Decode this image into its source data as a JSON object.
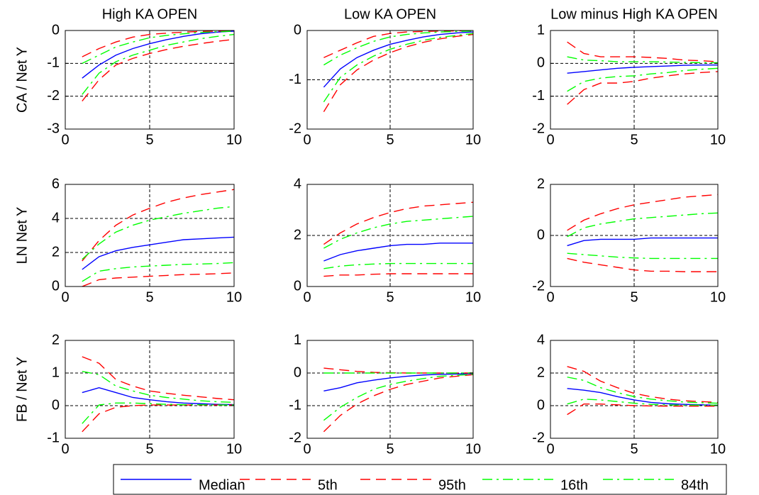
{
  "chart_data": [
    {
      "type": "line",
      "title": "High KA OPEN",
      "ylabel": "CA / Net Y",
      "x": [
        1,
        2,
        3,
        4,
        5,
        6,
        7,
        8,
        9,
        10
      ],
      "xlim": [
        0,
        10
      ],
      "xticks": [
        0,
        5,
        10
      ],
      "ylim": [
        -3,
        0
      ],
      "yticks": [
        -3,
        -2,
        -1,
        0
      ],
      "grid": true,
      "series": [
        {
          "name": "Median",
          "color": "#0000ff",
          "linestyle": "solid",
          "values": [
            -1.45,
            -1.05,
            -0.75,
            -0.55,
            -0.4,
            -0.28,
            -0.18,
            -0.1,
            -0.05,
            -0.02
          ]
        },
        {
          "name": "5th",
          "color": "#ff0000",
          "linestyle": "dashed",
          "values": [
            -2.15,
            -1.5,
            -1.05,
            -0.85,
            -0.7,
            -0.58,
            -0.48,
            -0.4,
            -0.33,
            -0.27
          ]
        },
        {
          "name": "95th",
          "color": "#ff0000",
          "linestyle": "dashed",
          "values": [
            -0.8,
            -0.55,
            -0.35,
            -0.2,
            -0.12,
            -0.08,
            -0.05,
            -0.03,
            -0.02,
            -0.01
          ]
        },
        {
          "name": "16th",
          "color": "#00ff00",
          "linestyle": "dashdot",
          "values": [
            -1.95,
            -1.3,
            -0.95,
            -0.75,
            -0.6,
            -0.45,
            -0.35,
            -0.25,
            -0.18,
            -0.12
          ]
        },
        {
          "name": "84th",
          "color": "#00ff00",
          "linestyle": "dashdot",
          "values": [
            -1.0,
            -0.75,
            -0.5,
            -0.35,
            -0.22,
            -0.15,
            -0.1,
            -0.06,
            -0.04,
            -0.02
          ]
        }
      ]
    },
    {
      "type": "line",
      "title": "Low KA OPEN",
      "x": [
        1,
        2,
        3,
        4,
        5,
        6,
        7,
        8,
        9,
        10
      ],
      "xlim": [
        0,
        10
      ],
      "xticks": [
        0,
        5,
        10
      ],
      "ylim": [
        -2,
        0
      ],
      "yticks": [
        -2,
        -1,
        0
      ],
      "grid": true,
      "series": [
        {
          "name": "Median",
          "color": "#0000ff",
          "linestyle": "solid",
          "values": [
            -1.15,
            -0.78,
            -0.55,
            -0.4,
            -0.28,
            -0.2,
            -0.13,
            -0.08,
            -0.05,
            -0.03
          ]
        },
        {
          "name": "5th",
          "color": "#ff0000",
          "linestyle": "dashed",
          "values": [
            -1.65,
            -1.1,
            -0.8,
            -0.6,
            -0.45,
            -0.33,
            -0.24,
            -0.17,
            -0.12,
            -0.08
          ]
        },
        {
          "name": "95th",
          "color": "#ff0000",
          "linestyle": "dashed",
          "values": [
            -0.55,
            -0.4,
            -0.25,
            -0.12,
            -0.06,
            -0.03,
            -0.02,
            -0.01,
            -0.01,
            0
          ]
        },
        {
          "name": "16th",
          "color": "#00ff00",
          "linestyle": "dashdot",
          "values": [
            -1.45,
            -0.95,
            -0.7,
            -0.52,
            -0.38,
            -0.28,
            -0.2,
            -0.14,
            -0.1,
            -0.06
          ]
        },
        {
          "name": "84th",
          "color": "#00ff00",
          "linestyle": "dashdot",
          "values": [
            -0.7,
            -0.5,
            -0.35,
            -0.22,
            -0.13,
            -0.08,
            -0.05,
            -0.03,
            -0.02,
            -0.01
          ]
        }
      ]
    },
    {
      "type": "line",
      "title": "Low minus High KA OPEN",
      "x": [
        1,
        2,
        3,
        4,
        5,
        6,
        7,
        8,
        9,
        10
      ],
      "xlim": [
        0,
        10
      ],
      "xticks": [
        0,
        5,
        10
      ],
      "ylim": [
        -2,
        1
      ],
      "yticks": [
        -2,
        -1,
        0,
        1
      ],
      "grid": true,
      "series": [
        {
          "name": "Median",
          "color": "#0000ff",
          "linestyle": "solid",
          "values": [
            -0.3,
            -0.25,
            -0.2,
            -0.15,
            -0.12,
            -0.1,
            -0.08,
            -0.06,
            -0.05,
            -0.05
          ]
        },
        {
          "name": "5th",
          "color": "#ff0000",
          "linestyle": "dashed",
          "values": [
            -1.25,
            -0.8,
            -0.6,
            -0.6,
            -0.55,
            -0.45,
            -0.38,
            -0.32,
            -0.28,
            -0.25
          ]
        },
        {
          "name": "95th",
          "color": "#ff0000",
          "linestyle": "dashed",
          "values": [
            0.65,
            0.3,
            0.2,
            0.2,
            0.2,
            0.18,
            0.15,
            0.1,
            0.08,
            0.05
          ]
        },
        {
          "name": "16th",
          "color": "#00ff00",
          "linestyle": "dashdot",
          "values": [
            -0.85,
            -0.55,
            -0.45,
            -0.4,
            -0.38,
            -0.32,
            -0.28,
            -0.22,
            -0.18,
            -0.15
          ]
        },
        {
          "name": "84th",
          "color": "#00ff00",
          "linestyle": "dashdot",
          "values": [
            0.2,
            0.1,
            0.08,
            0.05,
            0.05,
            0.05,
            0.04,
            0.03,
            0.02,
            0.02
          ]
        }
      ]
    },
    {
      "type": "line",
      "ylabel": "LN Net Y",
      "x": [
        1,
        2,
        3,
        4,
        5,
        6,
        7,
        8,
        9,
        10
      ],
      "xlim": [
        0,
        10
      ],
      "xticks": [
        0,
        5,
        10
      ],
      "ylim": [
        0,
        6
      ],
      "yticks": [
        0,
        2,
        4,
        6
      ],
      "grid": true,
      "series": [
        {
          "name": "Median",
          "color": "#0000ff",
          "linestyle": "solid",
          "values": [
            1.0,
            1.75,
            2.1,
            2.3,
            2.45,
            2.6,
            2.75,
            2.8,
            2.85,
            2.9
          ]
        },
        {
          "name": "5th",
          "color": "#ff0000",
          "linestyle": "dashed",
          "values": [
            0,
            0.4,
            0.5,
            0.55,
            0.6,
            0.65,
            0.7,
            0.72,
            0.75,
            0.8
          ]
        },
        {
          "name": "95th",
          "color": "#ff0000",
          "linestyle": "dashed",
          "values": [
            1.5,
            2.7,
            3.6,
            4.2,
            4.6,
            4.95,
            5.2,
            5.4,
            5.55,
            5.7
          ]
        },
        {
          "name": "16th",
          "color": "#00ff00",
          "linestyle": "dashdot",
          "values": [
            0.3,
            0.9,
            1.05,
            1.15,
            1.2,
            1.25,
            1.3,
            1.32,
            1.35,
            1.4
          ]
        },
        {
          "name": "84th",
          "color": "#00ff00",
          "linestyle": "dashdot",
          "values": [
            1.6,
            2.5,
            3.2,
            3.6,
            3.9,
            4.1,
            4.3,
            4.45,
            4.6,
            4.7
          ]
        }
      ]
    },
    {
      "type": "line",
      "x": [
        1,
        2,
        3,
        4,
        5,
        6,
        7,
        8,
        9,
        10
      ],
      "xlim": [
        0,
        10
      ],
      "xticks": [
        0,
        5,
        10
      ],
      "ylim": [
        0,
        4
      ],
      "yticks": [
        0,
        2,
        4
      ],
      "grid": true,
      "series": [
        {
          "name": "Median",
          "color": "#0000ff",
          "linestyle": "solid",
          "values": [
            1.0,
            1.25,
            1.4,
            1.5,
            1.6,
            1.65,
            1.65,
            1.7,
            1.7,
            1.7
          ]
        },
        {
          "name": "5th",
          "color": "#ff0000",
          "linestyle": "dashed",
          "values": [
            0.4,
            0.45,
            0.45,
            0.48,
            0.5,
            0.5,
            0.5,
            0.5,
            0.5,
            0.5
          ]
        },
        {
          "name": "95th",
          "color": "#ff0000",
          "linestyle": "dashed",
          "values": [
            1.65,
            2.1,
            2.45,
            2.7,
            2.9,
            3.05,
            3.15,
            3.2,
            3.25,
            3.3
          ]
        },
        {
          "name": "16th",
          "color": "#00ff00",
          "linestyle": "dashdot",
          "values": [
            0.7,
            0.8,
            0.85,
            0.88,
            0.9,
            0.9,
            0.9,
            0.9,
            0.9,
            0.9
          ]
        },
        {
          "name": "84th",
          "color": "#00ff00",
          "linestyle": "dashdot",
          "values": [
            1.5,
            1.85,
            2.1,
            2.3,
            2.45,
            2.55,
            2.6,
            2.65,
            2.7,
            2.75
          ]
        }
      ]
    },
    {
      "type": "line",
      "x": [
        1,
        2,
        3,
        4,
        5,
        6,
        7,
        8,
        9,
        10
      ],
      "xlim": [
        0,
        10
      ],
      "xticks": [
        0,
        5,
        10
      ],
      "ylim": [
        -2,
        2
      ],
      "yticks": [
        -2,
        0,
        2
      ],
      "grid": true,
      "series": [
        {
          "name": "Median",
          "color": "#0000ff",
          "linestyle": "solid",
          "values": [
            -0.4,
            -0.2,
            -0.15,
            -0.15,
            -0.15,
            -0.1,
            -0.1,
            -0.1,
            -0.1,
            -0.1
          ]
        },
        {
          "name": "5th",
          "color": "#ff0000",
          "linestyle": "dashed",
          "values": [
            -0.9,
            -1.05,
            -1.15,
            -1.25,
            -1.35,
            -1.4,
            -1.4,
            -1.42,
            -1.42,
            -1.42
          ]
        },
        {
          "name": "95th",
          "color": "#ff0000",
          "linestyle": "dashed",
          "values": [
            0.2,
            0.6,
            0.85,
            1.05,
            1.2,
            1.3,
            1.4,
            1.5,
            1.55,
            1.6
          ]
        },
        {
          "name": "16th",
          "color": "#00ff00",
          "linestyle": "dashdot",
          "values": [
            -0.7,
            -0.75,
            -0.8,
            -0.85,
            -0.88,
            -0.9,
            -0.9,
            -0.9,
            -0.9,
            -0.9
          ]
        },
        {
          "name": "84th",
          "color": "#00ff00",
          "linestyle": "dashdot",
          "values": [
            -0.05,
            0.3,
            0.45,
            0.55,
            0.65,
            0.7,
            0.75,
            0.8,
            0.85,
            0.88
          ]
        }
      ]
    },
    {
      "type": "line",
      "ylabel": "FB / Net Y",
      "x": [
        1,
        2,
        3,
        4,
        5,
        6,
        7,
        8,
        9,
        10
      ],
      "xlim": [
        0,
        10
      ],
      "xticks": [
        0,
        5,
        10
      ],
      "ylim": [
        -1,
        2
      ],
      "yticks": [
        -1,
        0,
        1,
        2
      ],
      "grid": true,
      "series": [
        {
          "name": "Median",
          "color": "#0000ff",
          "linestyle": "solid",
          "values": [
            0.4,
            0.55,
            0.4,
            0.25,
            0.18,
            0.12,
            0.08,
            0.06,
            0.04,
            0.03
          ]
        },
        {
          "name": "5th",
          "color": "#ff0000",
          "linestyle": "dashed",
          "values": [
            -0.8,
            -0.25,
            -0.05,
            0,
            0.02,
            0.02,
            0.02,
            0.02,
            0.02,
            0.02
          ]
        },
        {
          "name": "95th",
          "color": "#ff0000",
          "linestyle": "dashed",
          "values": [
            1.5,
            1.3,
            0.8,
            0.6,
            0.45,
            0.38,
            0.32,
            0.27,
            0.22,
            0.18
          ]
        },
        {
          "name": "16th",
          "color": "#00ff00",
          "linestyle": "dashdot",
          "values": [
            -0.55,
            0.02,
            0.08,
            0.08,
            0.06,
            0.04,
            0.03,
            0.03,
            0.02,
            0.02
          ]
        },
        {
          "name": "84th",
          "color": "#00ff00",
          "linestyle": "dashdot",
          "values": [
            1.05,
            0.95,
            0.6,
            0.45,
            0.32,
            0.25,
            0.2,
            0.15,
            0.12,
            0.1
          ]
        }
      ]
    },
    {
      "type": "line",
      "x": [
        1,
        2,
        3,
        4,
        5,
        6,
        7,
        8,
        9,
        10
      ],
      "xlim": [
        0,
        10
      ],
      "xticks": [
        0,
        5,
        10
      ],
      "ylim": [
        -2,
        1
      ],
      "yticks": [
        -2,
        -1,
        0,
        1
      ],
      "grid": true,
      "series": [
        {
          "name": "Median",
          "color": "#0000ff",
          "linestyle": "solid",
          "values": [
            -0.55,
            -0.45,
            -0.3,
            -0.22,
            -0.15,
            -0.1,
            -0.06,
            -0.04,
            -0.03,
            -0.02
          ]
        },
        {
          "name": "5th",
          "color": "#ff0000",
          "linestyle": "dashed",
          "values": [
            -1.8,
            -1.3,
            -0.95,
            -0.7,
            -0.5,
            -0.35,
            -0.25,
            -0.15,
            -0.1,
            -0.05
          ]
        },
        {
          "name": "95th",
          "color": "#ff0000",
          "linestyle": "dashed",
          "values": [
            0.15,
            0.1,
            0.05,
            0.02,
            0.01,
            0,
            0,
            0,
            0,
            0
          ]
        },
        {
          "name": "16th",
          "color": "#00ff00",
          "linestyle": "dashdot",
          "values": [
            -1.45,
            -1.05,
            -0.75,
            -0.5,
            -0.35,
            -0.25,
            -0.17,
            -0.1,
            -0.07,
            -0.04
          ]
        },
        {
          "name": "84th",
          "color": "#00ff00",
          "linestyle": "dashdot",
          "values": [
            0,
            0,
            0,
            0,
            0,
            0,
            0,
            0,
            0,
            0
          ]
        }
      ]
    },
    {
      "type": "line",
      "x": [
        1,
        2,
        3,
        4,
        5,
        6,
        7,
        8,
        9,
        10
      ],
      "xlim": [
        0,
        10
      ],
      "xticks": [
        0,
        5,
        10
      ],
      "ylim": [
        -2,
        4
      ],
      "yticks": [
        -2,
        0,
        2,
        4
      ],
      "grid": true,
      "series": [
        {
          "name": "Median",
          "color": "#0000ff",
          "linestyle": "solid",
          "values": [
            1.05,
            0.95,
            0.8,
            0.55,
            0.35,
            0.2,
            0.12,
            0.08,
            0.05,
            0.03
          ]
        },
        {
          "name": "5th",
          "color": "#ff0000",
          "linestyle": "dashed",
          "values": [
            -0.55,
            0.1,
            0.1,
            0.05,
            0,
            -0.02,
            -0.03,
            -0.03,
            -0.03,
            -0.03
          ]
        },
        {
          "name": "95th",
          "color": "#ff0000",
          "linestyle": "dashed",
          "values": [
            2.4,
            2.1,
            1.5,
            1.1,
            0.75,
            0.55,
            0.4,
            0.3,
            0.25,
            0.2
          ]
        },
        {
          "name": "16th",
          "color": "#00ff00",
          "linestyle": "dashdot",
          "values": [
            0.1,
            0.4,
            0.35,
            0.25,
            0.15,
            0.08,
            0.05,
            0.03,
            0.03,
            0.03
          ]
        },
        {
          "name": "84th",
          "color": "#00ff00",
          "linestyle": "dashdot",
          "values": [
            1.75,
            1.55,
            1.1,
            0.8,
            0.55,
            0.4,
            0.3,
            0.22,
            0.18,
            0.15
          ]
        }
      ]
    }
  ]
}
